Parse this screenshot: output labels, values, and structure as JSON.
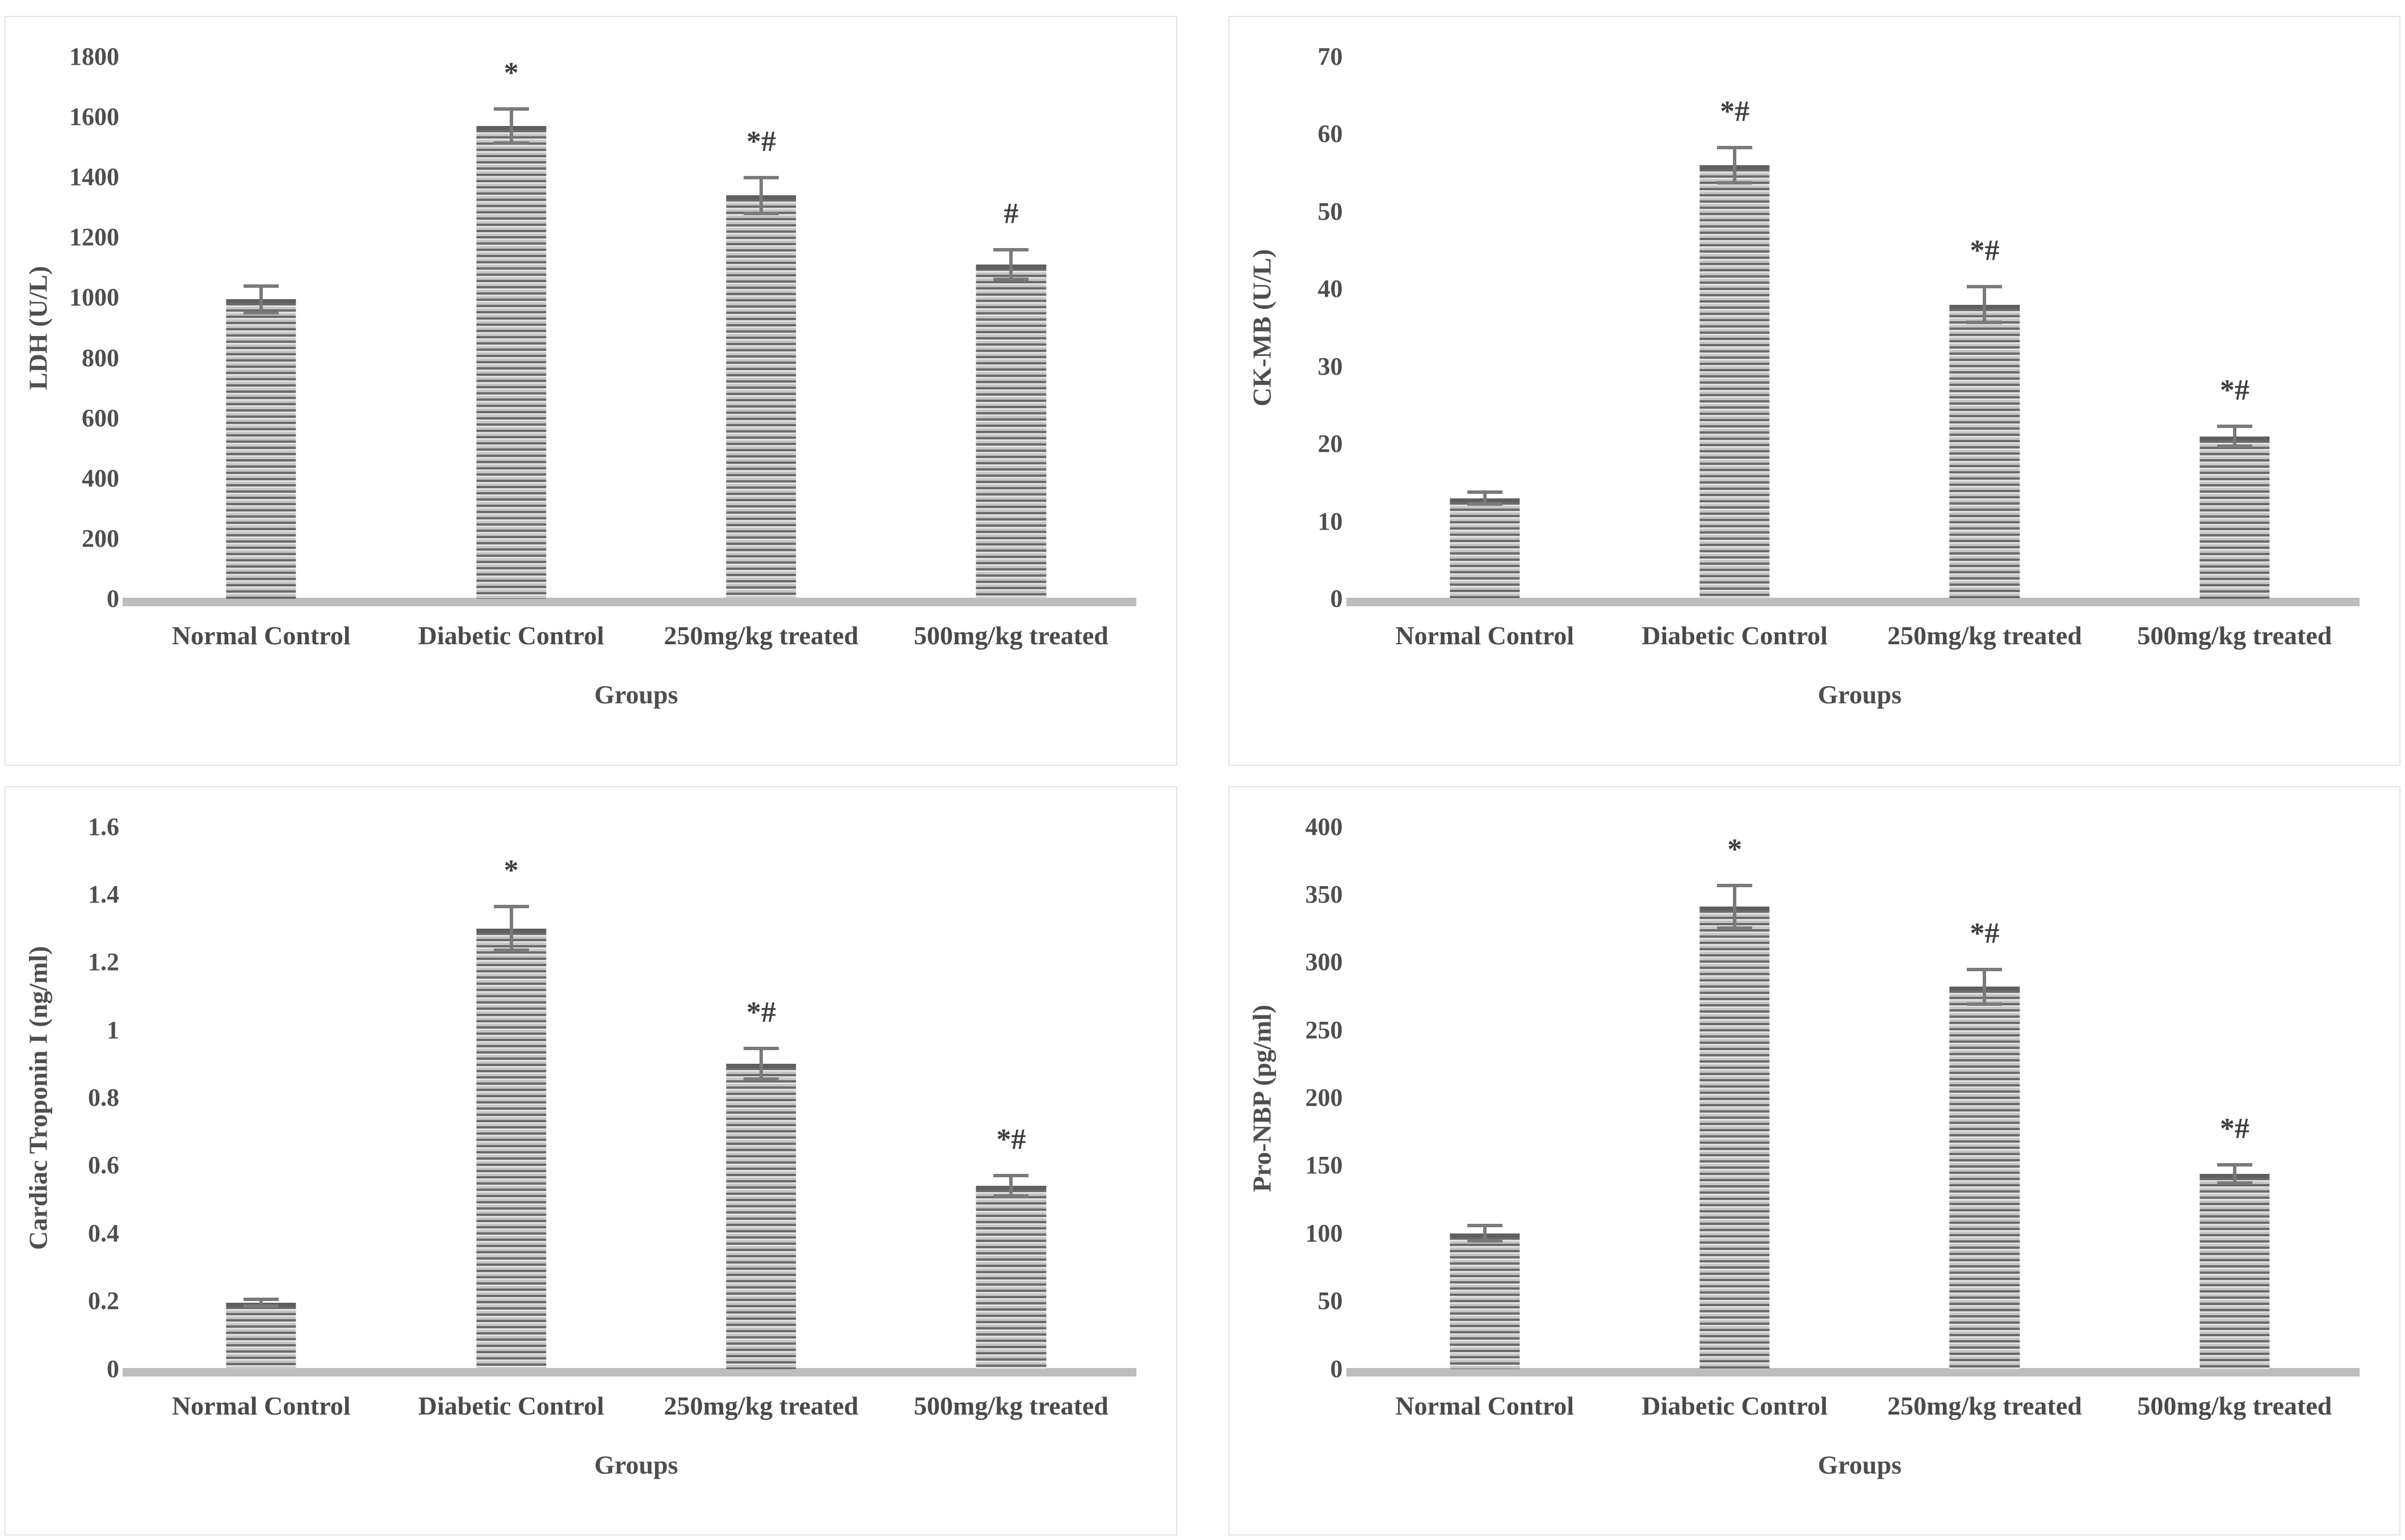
{
  "colors": {
    "text": "#4e4e4e",
    "axis_baseline": "#bdbdbd",
    "error_bar": "#7a7a7a",
    "bar_stripe_dark": "#6a6a6a",
    "bar_stripe_light": "#e0e0e0",
    "bar_stripe_mid": "#c4c4c4",
    "panel_border": "#e3e3e3"
  },
  "chart_data": [
    {
      "id": "ldh",
      "type": "bar",
      "ylabel": "LDH (U/L)",
      "xlabel": "Groups",
      "ylim": [
        0,
        1800
      ],
      "yticks": [
        "0",
        "200",
        "400",
        "600",
        "800",
        "1000",
        "1200",
        "1400",
        "1600",
        "1800"
      ],
      "categories": [
        "Normal Control",
        "Diabetic Control",
        "250mg/kg treated",
        "500mg/kg treated"
      ],
      "values": [
        995,
        1570,
        1340,
        1110
      ],
      "errors": [
        50,
        62,
        65,
        55
      ],
      "annotations": [
        "",
        "*",
        "*#",
        "#"
      ],
      "grid": false,
      "legend": "none"
    },
    {
      "id": "ckmb",
      "type": "bar",
      "ylabel": "CK-MB (U/L)",
      "xlabel": "Groups",
      "ylim": [
        0,
        70
      ],
      "yticks": [
        "0",
        "10",
        "20",
        "30",
        "40",
        "50",
        "60",
        "70"
      ],
      "categories": [
        "Normal Control",
        "Diabetic Control",
        "250mg/kg treated",
        "500mg/kg treated"
      ],
      "values": [
        13,
        56,
        38,
        21
      ],
      "errors": [
        1,
        2.5,
        2.5,
        1.5
      ],
      "annotations": [
        "",
        "*#",
        "*#",
        "*#"
      ],
      "grid": false,
      "legend": "none"
    },
    {
      "id": "ctni",
      "type": "bar",
      "ylabel": "Cardiac Troponin I (ng/ml)",
      "xlabel": "Groups",
      "ylim": [
        0,
        1.6
      ],
      "yticks": [
        "0",
        "0.2",
        "0.4",
        "0.6",
        "0.8",
        "1",
        "1.2",
        "1.4",
        "1.6"
      ],
      "categories": [
        "Normal Control",
        "Diabetic Control",
        "250mg/kg treated",
        "500mg/kg treated"
      ],
      "values": [
        0.195,
        1.3,
        0.9,
        0.54
      ],
      "errors": [
        0.015,
        0.07,
        0.05,
        0.035
      ],
      "annotations": [
        "",
        "*",
        "*#",
        "*#"
      ],
      "grid": false,
      "legend": "none"
    },
    {
      "id": "pronbp",
      "type": "bar",
      "ylabel": "Pro-NBP (pg/ml)",
      "xlabel": "Groups",
      "ylim": [
        0,
        400
      ],
      "yticks": [
        "0",
        "50",
        "100",
        "150",
        "200",
        "250",
        "300",
        "350",
        "400"
      ],
      "categories": [
        "Normal Control",
        "Diabetic Control",
        "250mg/kg treated",
        "500mg/kg treated"
      ],
      "values": [
        100,
        341,
        282,
        144
      ],
      "errors": [
        7,
        17,
        14,
        8
      ],
      "annotations": [
        "",
        "*",
        "*#",
        "*#"
      ],
      "grid": false,
      "legend": "none"
    }
  ]
}
